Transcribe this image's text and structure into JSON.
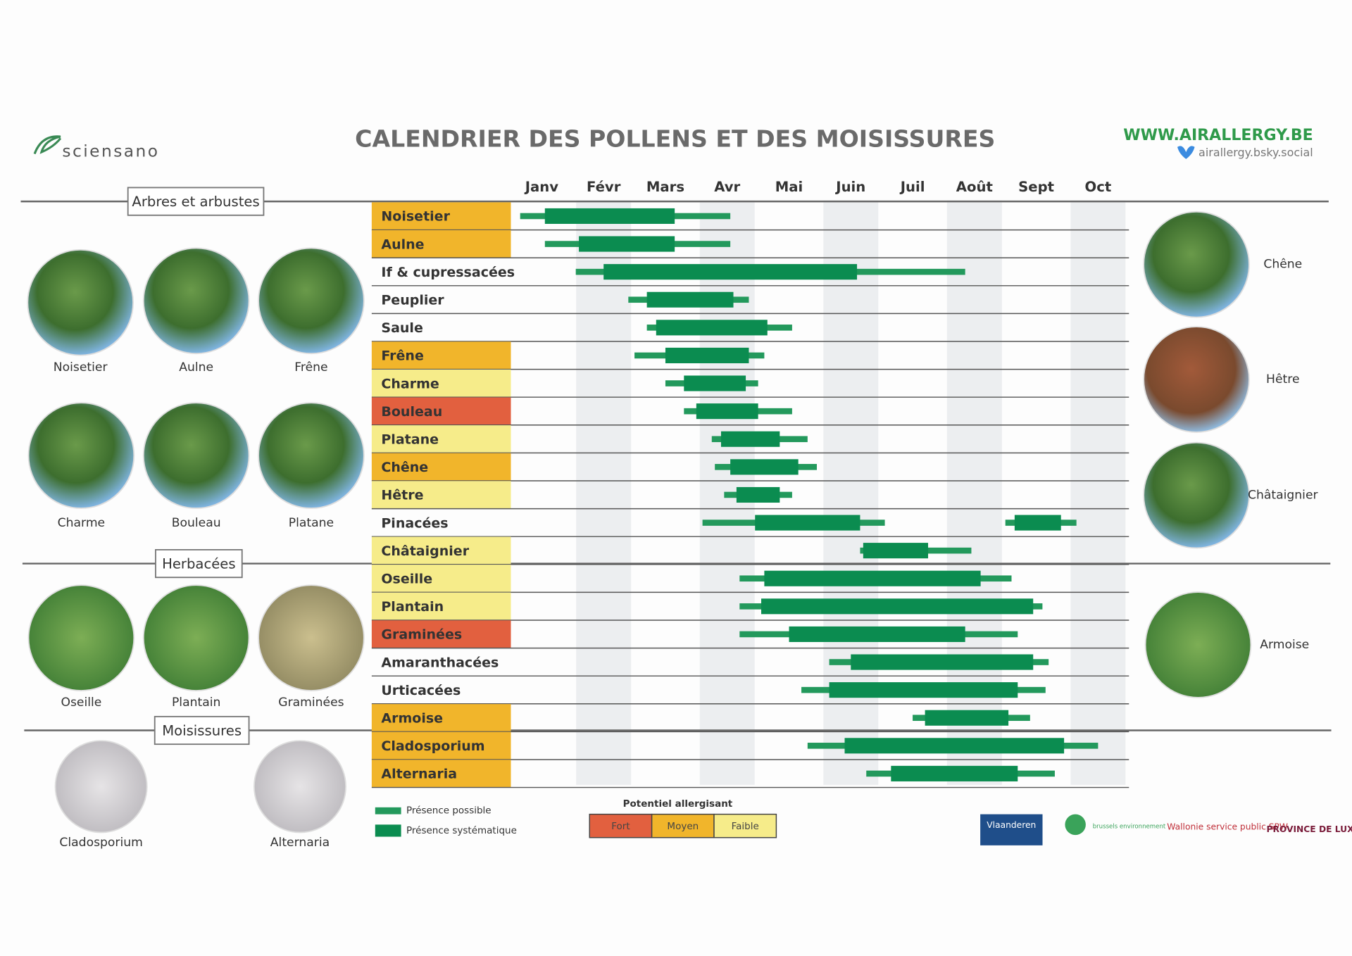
{
  "header": {
    "logo": "sciensano",
    "title": "CALENDRIER DES POLLENS ET DES MOISISSURES",
    "website": "WWW.AIRALLERGY.BE",
    "social": "airallergy.bsky.social"
  },
  "sections": [
    {
      "title": "Arbres et arbustes"
    },
    {
      "title": "Herbacées"
    },
    {
      "title": "Moisissures"
    }
  ],
  "photos": [
    "Noisetier",
    "Aulne",
    "Frêne",
    "Charme",
    "Bouleau",
    "Platane",
    "Oseille",
    "Plantain",
    "Graminées",
    "Cladosporium",
    "Alternaria",
    "Chêne",
    "Hêtre",
    "Châtaignier",
    "Armoise"
  ],
  "chart_data": {
    "type": "gantt",
    "xlim": [
      0,
      10
    ],
    "categories": [
      "Janv",
      "Févr",
      "Mars",
      "Avr",
      "Mai",
      "Juin",
      "Juil",
      "Août",
      "Sept",
      "Oct"
    ],
    "series": [
      {
        "name": "Présence possible",
        "color": "#23995c"
      },
      {
        "name": "Présence systématique",
        "color": "#0b8c50"
      }
    ],
    "rows": [
      {
        "name": "Noisetier",
        "label_color": "#f1b52b",
        "possible": [
          [
            0.15,
            3.55
          ]
        ],
        "systematic": [
          [
            0.55,
            2.65
          ]
        ]
      },
      {
        "name": "Aulne",
        "label_color": "#f1b52b",
        "possible": [
          [
            0.55,
            3.55
          ]
        ],
        "systematic": [
          [
            1.1,
            2.65
          ]
        ]
      },
      {
        "name": "If & cupressacées",
        "label_color": null,
        "possible": [
          [
            1.05,
            7.35
          ]
        ],
        "systematic": [
          [
            1.5,
            5.6
          ]
        ]
      },
      {
        "name": "Peuplier",
        "label_color": null,
        "possible": [
          [
            1.9,
            3.85
          ]
        ],
        "systematic": [
          [
            2.2,
            3.6
          ]
        ]
      },
      {
        "name": "Saule",
        "label_color": null,
        "possible": [
          [
            2.2,
            4.55
          ]
        ],
        "systematic": [
          [
            2.35,
            4.15
          ]
        ]
      },
      {
        "name": "Frêne",
        "label_color": "#f1b52b",
        "possible": [
          [
            2.0,
            4.1
          ]
        ],
        "systematic": [
          [
            2.5,
            3.85
          ]
        ]
      },
      {
        "name": "Charme",
        "label_color": "#f6ec8a",
        "possible": [
          [
            2.5,
            4.0
          ]
        ],
        "systematic": [
          [
            2.8,
            3.8
          ]
        ]
      },
      {
        "name": "Bouleau",
        "label_color": "#e2603f",
        "possible": [
          [
            2.8,
            4.55
          ]
        ],
        "systematic": [
          [
            3.0,
            4.0
          ]
        ]
      },
      {
        "name": "Platane",
        "label_color": "#f6ec8a",
        "possible": [
          [
            3.25,
            4.8
          ]
        ],
        "systematic": [
          [
            3.4,
            4.35
          ]
        ]
      },
      {
        "name": "Chêne",
        "label_color": "#f1b52b",
        "possible": [
          [
            3.3,
            4.95
          ]
        ],
        "systematic": [
          [
            3.55,
            4.65
          ]
        ]
      },
      {
        "name": "Hêtre",
        "label_color": "#f6ec8a",
        "possible": [
          [
            3.45,
            4.55
          ]
        ],
        "systematic": [
          [
            3.65,
            4.35
          ]
        ]
      },
      {
        "name": "Pinacées",
        "label_color": null,
        "possible": [
          [
            3.1,
            6.05
          ],
          [
            8.0,
            9.15
          ]
        ],
        "systematic": [
          [
            3.95,
            5.65
          ],
          [
            8.15,
            8.9
          ]
        ]
      },
      {
        "name": "Châtaignier",
        "label_color": "#f6ec8a",
        "possible": [
          [
            5.65,
            7.45
          ]
        ],
        "systematic": [
          [
            5.7,
            6.75
          ]
        ]
      },
      {
        "name": "Oseille",
        "label_color": "#f6ec8a",
        "possible": [
          [
            3.7,
            8.1
          ]
        ],
        "systematic": [
          [
            4.1,
            7.6
          ]
        ]
      },
      {
        "name": "Plantain",
        "label_color": "#f6ec8a",
        "possible": [
          [
            3.7,
            8.6
          ]
        ],
        "systematic": [
          [
            4.05,
            8.45
          ]
        ]
      },
      {
        "name": "Graminées",
        "label_color": "#e2603f",
        "possible": [
          [
            3.7,
            8.2
          ]
        ],
        "systematic": [
          [
            4.5,
            7.35
          ]
        ]
      },
      {
        "name": "Amaranthacées",
        "label_color": null,
        "possible": [
          [
            5.15,
            8.7
          ]
        ],
        "systematic": [
          [
            5.5,
            8.45
          ]
        ]
      },
      {
        "name": "Urticacées",
        "label_color": null,
        "possible": [
          [
            4.7,
            8.65
          ]
        ],
        "systematic": [
          [
            5.15,
            8.2
          ]
        ]
      },
      {
        "name": "Armoise",
        "label_color": "#f1b52b",
        "possible": [
          [
            6.5,
            8.4
          ]
        ],
        "systematic": [
          [
            6.7,
            8.05
          ]
        ]
      },
      {
        "name": "Cladosporium",
        "label_color": "#f1b52b",
        "possible": [
          [
            4.8,
            9.5
          ]
        ],
        "systematic": [
          [
            5.4,
            8.95
          ]
        ]
      },
      {
        "name": "Alternaria",
        "label_color": "#f1b52b",
        "possible": [
          [
            5.75,
            8.8
          ]
        ],
        "systematic": [
          [
            6.15,
            8.2
          ]
        ]
      }
    ]
  },
  "potential": {
    "title": "Potentiel allergisant",
    "levels": [
      {
        "label": "Fort",
        "color": "#e2603f"
      },
      {
        "label": "Moyen",
        "color": "#f1b52b"
      },
      {
        "label": "Faible",
        "color": "#f6ec8a"
      }
    ]
  },
  "partners": [
    "Vlaanderen",
    "brussels environnement",
    "Wallonie service public SPW",
    "PROVINCE DE LUXEMBOURG"
  ]
}
